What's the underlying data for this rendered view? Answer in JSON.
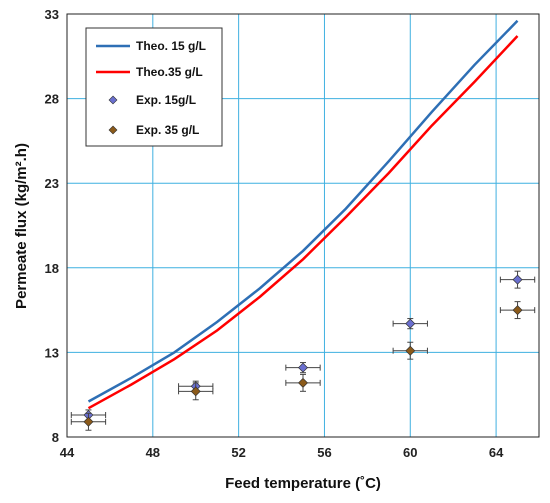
{
  "chart_data": {
    "type": "line",
    "xlabel": "Feed temperature (˚C)",
    "ylabel": "Permeate flux (kg/m².h)",
    "xlim": [
      44,
      66
    ],
    "ylim": [
      8,
      33
    ],
    "x_ticks": [
      44,
      48,
      52,
      56,
      60,
      64
    ],
    "y_ticks": [
      8,
      13,
      18,
      23,
      28,
      33
    ],
    "grid": true,
    "legend_position": "top-left",
    "series": [
      {
        "name": "Theo. 15 g/L",
        "kind": "line",
        "color": "#2e6fb5",
        "x": [
          45,
          47,
          49,
          51,
          53,
          55,
          57,
          59,
          61,
          63,
          65
        ],
        "y": [
          10.1,
          11.5,
          13.0,
          14.8,
          16.8,
          19.0,
          21.5,
          24.3,
          27.2,
          30.0,
          32.6
        ]
      },
      {
        "name": "Theo.35 g/L",
        "kind": "line",
        "color": "#ff0000",
        "x": [
          45,
          47,
          49,
          51,
          53,
          55,
          57,
          59,
          61,
          63,
          65
        ],
        "y": [
          9.7,
          11.1,
          12.6,
          14.3,
          16.3,
          18.5,
          21.0,
          23.6,
          26.4,
          29.0,
          31.7
        ]
      },
      {
        "name": "Exp. 15g/L",
        "kind": "scatter",
        "color": "#6a6fcf",
        "x": [
          45,
          50,
          55,
          60,
          65
        ],
        "y": [
          9.3,
          11.0,
          12.1,
          14.7,
          17.3
        ],
        "x_err": [
          0.8,
          0.8,
          0.8,
          0.8,
          0.8
        ],
        "y_err": [
          0.3,
          0.3,
          0.3,
          0.3,
          0.5
        ]
      },
      {
        "name": "Exp. 35 g/L",
        "kind": "scatter",
        "color": "#8b5a1a",
        "x": [
          45,
          50,
          55,
          60,
          65
        ],
        "y": [
          8.9,
          10.7,
          11.2,
          13.1,
          15.5
        ],
        "x_err": [
          0.8,
          0.8,
          0.8,
          0.8,
          0.8
        ],
        "y_err": [
          0.5,
          0.5,
          0.5,
          0.5,
          0.5
        ]
      }
    ]
  }
}
